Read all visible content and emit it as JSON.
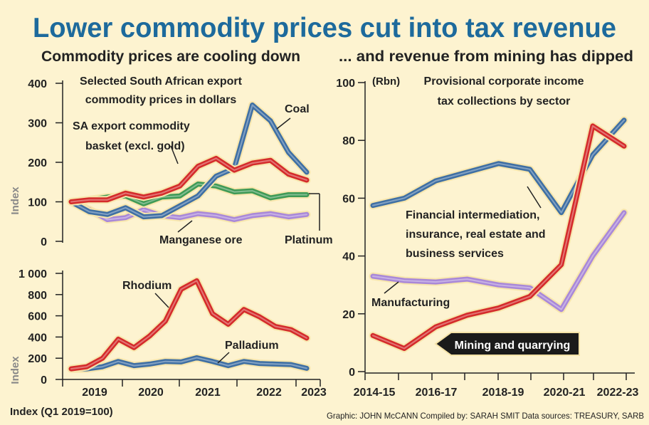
{
  "title": "Lower commodity prices cut into tax revenue",
  "left_subtitle": "Commodity prices are cooling down",
  "right_subtitle": "... and revenue from mining has dipped",
  "credit": "Graphic: JOHN McCANN  Compiled by: SARAH SMIT  Data sources: TREASURY, SARB",
  "colors": {
    "title": "#1d6a9c",
    "background": "#fdf3d0",
    "text": "#222222",
    "blue": "#3f6fa3",
    "red": "#d42b2b",
    "green": "#3f9a56",
    "purple": "#a988d8",
    "axis_gray": "#888888"
  },
  "chart_data": [
    {
      "type": "line",
      "title": "Selected South African export commodity prices in dollars",
      "title_lines": [
        "Selected South African export",
        "commodity prices in dollars"
      ],
      "ylabel": "Index",
      "ylim": [
        0,
        400
      ],
      "yticks": [
        0,
        100,
        200,
        300,
        400
      ],
      "ytick_labels": [
        "0",
        "100",
        "200",
        "300",
        "400"
      ],
      "x": [
        0,
        0.33,
        0.66,
        1,
        1.33,
        1.66,
        2,
        2.33,
        2.66,
        3,
        3.33,
        3.66,
        4,
        4.33
      ],
      "series": [
        {
          "name": "Coal",
          "label": "Coal",
          "color": "blue",
          "values": [
            100,
            75,
            68,
            85,
            62,
            65,
            90,
            115,
            165,
            185,
            345,
            305,
            225,
            175
          ]
        },
        {
          "name": "SA export commodity basket (excl. gold)",
          "label_lines": [
            "SA export commodity",
            "basket (excl. gold)"
          ],
          "color": "red",
          "values": [
            100,
            105,
            105,
            122,
            112,
            122,
            140,
            190,
            210,
            180,
            198,
            205,
            170,
            155
          ]
        },
        {
          "name": "Platinum",
          "label": "Platinum",
          "color": "green",
          "values": [
            100,
            105,
            112,
            115,
            95,
            112,
            115,
            145,
            140,
            125,
            128,
            110,
            118,
            118
          ]
        },
        {
          "name": "Manganese ore",
          "label": "Manganese ore",
          "color": "purple",
          "values": [
            100,
            80,
            55,
            60,
            80,
            65,
            60,
            70,
            65,
            55,
            65,
            70,
            62,
            68
          ]
        }
      ]
    },
    {
      "type": "line",
      "ylabel": "Index",
      "ylim": [
        0,
        1000
      ],
      "yticks": [
        0,
        200,
        400,
        600,
        800,
        1000
      ],
      "ytick_labels": [
        "0",
        "200",
        "400",
        "600",
        "800",
        "1 000"
      ],
      "xlim": [
        -0.5,
        4.5
      ],
      "xtick_labels": [
        "2019",
        "2020",
        "2021",
        "2022",
        "2023"
      ],
      "x": [
        0,
        0.33,
        0.66,
        1,
        1.33,
        1.66,
        2,
        2.33,
        2.66,
        3,
        3.33,
        3.66,
        4,
        4.33
      ],
      "series": [
        {
          "name": "Rhodium",
          "label": "Rhodium",
          "color": "red",
          "values": [
            100,
            120,
            200,
            380,
            300,
            410,
            550,
            850,
            930,
            620,
            520,
            660,
            590,
            500
          ]
        },
        {
          "name": "Palladium",
          "label": "Palladium",
          "color": "blue",
          "values": [
            100,
            100,
            120,
            170,
            130,
            145,
            170,
            165,
            205,
            170,
            130,
            170,
            150,
            145
          ]
        }
      ],
      "series_tail": {
        "Rhodium": [
          470,
          390
        ],
        "Palladium": [
          140,
          105
        ]
      }
    },
    {
      "type": "line",
      "title": "Provisional corporate income tax collections by sector",
      "title_lines": [
        "Provisional corporate income",
        "tax collections by sector"
      ],
      "unit_label": "(Rbn)",
      "ylim": [
        0,
        100
      ],
      "yticks": [
        0,
        20,
        40,
        60,
        80,
        100
      ],
      "ytick_labels": [
        "0",
        "20",
        "40",
        "60",
        "80",
        "100"
      ],
      "x": [
        "2014-15",
        "2015-16",
        "2016-17",
        "2017-18",
        "2018-19",
        "2019-20",
        "2020-21",
        "2021-22",
        "2022-23"
      ],
      "xtick_labels": [
        "2014-15",
        "2016-17",
        "2018-19",
        "2020-21",
        "2022-23"
      ],
      "series": [
        {
          "name": "Financial intermediation, insurance, real estate and business services",
          "label_lines": [
            "Financial intermediation,",
            "insurance, real estate and",
            "business services"
          ],
          "color": "blue",
          "values": [
            57.5,
            60,
            66,
            69,
            72,
            70,
            55,
            75,
            87
          ]
        },
        {
          "name": "Manufacturing",
          "label": "Manufacturing",
          "color": "purple",
          "values": [
            33,
            31.5,
            31,
            32,
            30,
            29,
            21.5,
            40,
            55
          ]
        },
        {
          "name": "Mining and quarrying",
          "label": "Mining and quarrying",
          "color": "red",
          "values": [
            12.5,
            8,
            15.5,
            19.5,
            22,
            26,
            37,
            85,
            78
          ]
        }
      ]
    }
  ],
  "footer_label": "Index (Q1 2019=100)"
}
